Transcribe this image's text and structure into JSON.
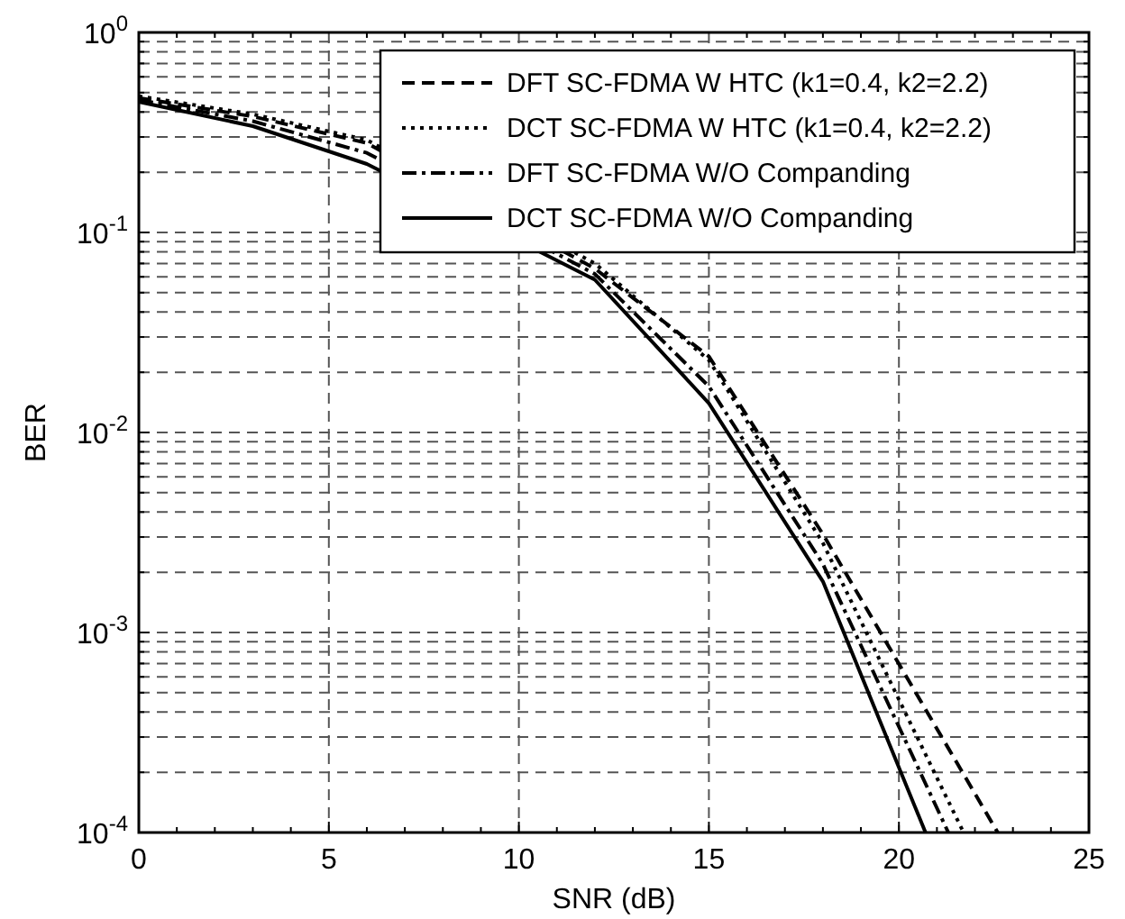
{
  "chart_data": {
    "type": "line",
    "xlabel": "SNR (dB)",
    "ylabel": "BER",
    "log": "y",
    "grid": true,
    "legend": "top right",
    "xlim": [
      0,
      25
    ],
    "xticks": [
      0,
      5,
      10,
      15,
      20,
      25
    ],
    "ylim": [
      0.0001,
      1
    ],
    "yticks": [
      {
        "value": 0.0001,
        "label": "10$^{-4}$"
      },
      {
        "value": 0.001,
        "label": "10$^{-3}$"
      },
      {
        "value": 0.01,
        "label": "10$^{-2}$"
      },
      {
        "value": 0.1,
        "label": "10$^{-1}$"
      },
      {
        "value": 1,
        "label": "10$^{0}$"
      }
    ],
    "series": [
      {
        "name": "DFT SC-FDMA W HTC (k1=0.4, k2=2.2)",
        "color": "#000000",
        "line_style": "dashed",
        "x": [
          0,
          3,
          6,
          12,
          15,
          18,
          22.6
        ],
        "values": [
          0.47,
          0.38,
          0.28,
          0.066,
          0.024,
          0.0031,
          0.0001
        ]
      },
      {
        "name": "DCT SC-FDMA W HTC (k1=0.4, k2=2.2)",
        "color": "#000000",
        "line_style": "dotted",
        "x": [
          0,
          3,
          6,
          12,
          15,
          18,
          21.7
        ],
        "values": [
          0.48,
          0.39,
          0.29,
          0.07,
          0.023,
          0.0028,
          0.0001
        ]
      },
      {
        "name": "DFT SC-FDMA W/O Companding",
        "color": "#000000",
        "line_style": "dashdot",
        "x": [
          0,
          3,
          6,
          12,
          15,
          18,
          21.3
        ],
        "values": [
          0.46,
          0.36,
          0.25,
          0.062,
          0.017,
          0.0022,
          0.0001
        ]
      },
      {
        "name": "DCT SC-FDMA W/O Companding",
        "color": "#000000",
        "line_style": "solid",
        "x": [
          0,
          3,
          6,
          12,
          15,
          18,
          20.7
        ],
        "values": [
          0.45,
          0.34,
          0.22,
          0.058,
          0.014,
          0.0018,
          0.0001
        ]
      }
    ]
  }
}
